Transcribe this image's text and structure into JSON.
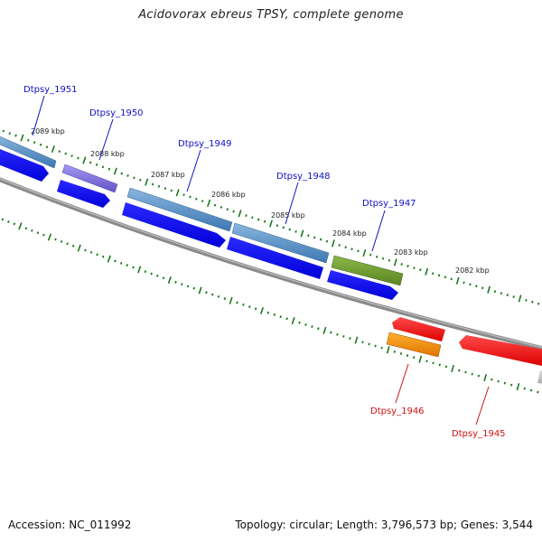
{
  "title": "Acidovorax ebreus TPSY, complete genome",
  "accession_text": "Accession: NC_011992",
  "summary_text": "Topology: circular; Length: 3,796,573 bp; Genes: 3,544",
  "scale_labels": [
    "2089 kbp",
    "2088 kbp",
    "2087 kbp",
    "2086 kbp",
    "2085 kbp",
    "2084 kbp",
    "2083 kbp",
    "2082 kbp"
  ],
  "genes": [
    {
      "label": "Dtpsy_1951",
      "label_color": "#1010c8",
      "strand": "top"
    },
    {
      "label": "Dtpsy_1950",
      "label_color": "#1010c8",
      "strand": "top"
    },
    {
      "label": "Dtpsy_1949",
      "label_color": "#1010c8",
      "strand": "top"
    },
    {
      "label": "Dtpsy_1948",
      "label_color": "#1010c8",
      "strand": "top"
    },
    {
      "label": "Dtpsy_1947",
      "label_color": "#1010c8",
      "strand": "top"
    },
    {
      "label": "Dtpsy_1946",
      "label_color": "#d01010",
      "strand": "bottom"
    },
    {
      "label": "Dtpsy_1945",
      "label_color": "#d01010",
      "strand": "bottom"
    }
  ],
  "colors": {
    "backbone": "#777777",
    "tick": "#1a7a1a",
    "cds_blue": "#0a0af0",
    "gene_steelblue": "#4a86c0",
    "gene_purple": "#7a6ad6",
    "gene_olive": "#6a9428",
    "gene_red": "#f00000",
    "gene_orange": "#ff8c00",
    "gene_gray": "#bbbbbb"
  }
}
